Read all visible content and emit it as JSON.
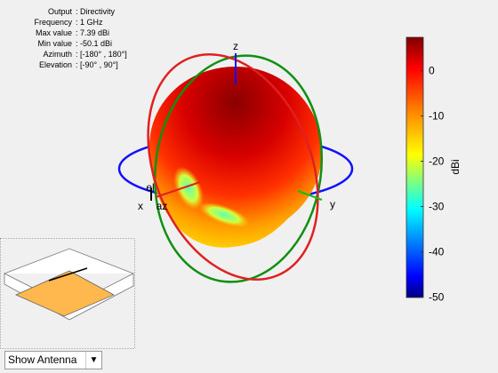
{
  "info": [
    {
      "key": "Output",
      "value": ": Directivity"
    },
    {
      "key": "Frequency",
      "value": ": 1 GHz"
    },
    {
      "key": "Max value",
      "value": ": 7.39 dBi"
    },
    {
      "key": "Min value",
      "value": ": -50.1 dBi"
    },
    {
      "key": "Azimuth",
      "value": ": [-180° , 180°]"
    },
    {
      "key": "Elevation",
      "value": ": [-90° , 90°]"
    }
  ],
  "axes": {
    "x": "x",
    "y": "y",
    "z": "z",
    "az": "az",
    "el": "el"
  },
  "colorbar": {
    "label": "dBi",
    "lim": [
      -50.1,
      7.39
    ],
    "ticks": [
      0,
      -10,
      -20,
      -30,
      -40,
      -50
    ]
  },
  "dropdown": {
    "selected": "Show Antenna"
  }
}
